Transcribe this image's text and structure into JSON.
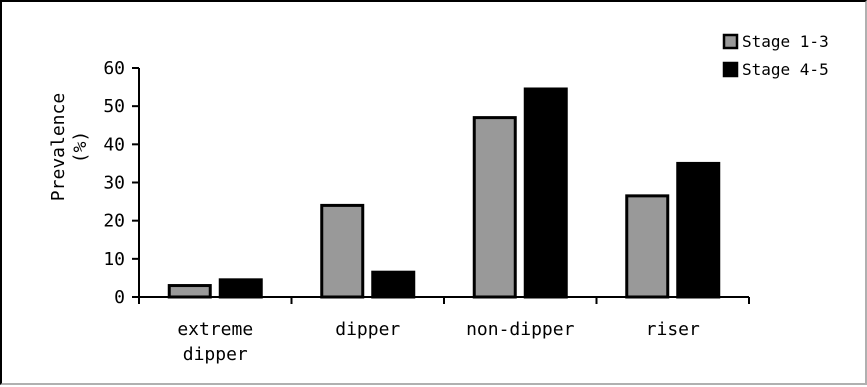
{
  "chart_data": {
    "type": "bar",
    "categories": [
      "extreme dipper",
      "dipper",
      "non-dipper",
      "riser"
    ],
    "category_lines": [
      [
        "extreme",
        "dipper"
      ],
      [
        "dipper"
      ],
      [
        "non-dipper"
      ],
      [
        "riser"
      ]
    ],
    "series": [
      {
        "name": "Stage 1-3",
        "values": [
          3,
          24,
          47,
          26.5
        ],
        "color": "#999999"
      },
      {
        "name": "Stage 4-5",
        "values": [
          4.5,
          6.5,
          54.5,
          35
        ],
        "color": "#000000"
      }
    ],
    "ylabel_lines": [
      "Prevalence",
      "(%)"
    ],
    "xlabel": "",
    "yticks": [
      0,
      10,
      20,
      30,
      40,
      50,
      60
    ],
    "ylim": [
      0,
      60
    ],
    "grid": false,
    "legend_position": "top-right"
  }
}
